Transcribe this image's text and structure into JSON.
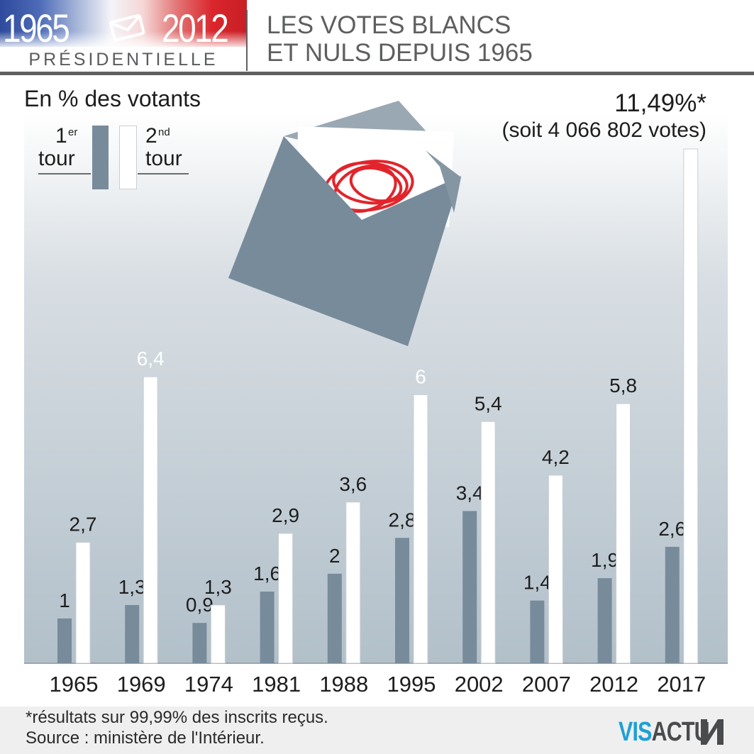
{
  "header": {
    "year_start": "1965",
    "year_end": "2012",
    "subtitle": "PRÉSIDENTIELLE",
    "title_line1": "LES VOTES BLANCS",
    "title_line2": "ET NULS DEPUIS 1965"
  },
  "legend": {
    "first_num": "1",
    "first_sup": "er",
    "first_word": "tour",
    "second_num": "2",
    "second_sup": "nd",
    "second_word": "tour"
  },
  "annotation": {
    "pct": "11,49%*",
    "votes": "(soit 4 066 802 votes)"
  },
  "footer": {
    "footnote": "*résultats sur 99,99% des inscrits reçus.",
    "source": "Source : ministère de l'Intérieur.",
    "brand_part1": "VIS",
    "brand_part2": "ACTU"
  },
  "colors": {
    "first_round": "#778b9b",
    "second_round": "#ffffff",
    "envelope": "#778b9b",
    "red_scribble": "#e2242b",
    "brand_blue": "#1ea0d6"
  },
  "icons": {
    "header_icon": "envelope-icon",
    "illustration": "ballot-envelope-icon",
    "brand": "visactu-logo"
  },
  "chart_data": {
    "type": "bar",
    "unit_label": "En % des votants",
    "categories": [
      "1965",
      "1969",
      "1974",
      "1981",
      "1988",
      "1995",
      "2002",
      "2007",
      "2012",
      "2017"
    ],
    "series": [
      {
        "name": "1er tour",
        "values": [
          1,
          1.3,
          0.9,
          1.6,
          2,
          2.8,
          3.4,
          1.4,
          1.9,
          2.6
        ],
        "labels": [
          "1",
          "1,3",
          "0,9",
          "1,6",
          "2",
          "2,8",
          "3,4",
          "1,4",
          "1,9",
          "2,6"
        ]
      },
      {
        "name": "2nd tour",
        "values": [
          2.7,
          6.4,
          1.3,
          2.9,
          3.6,
          6,
          5.4,
          4.2,
          5.8,
          11.49
        ],
        "labels": [
          "2,7",
          "6,4",
          "1,3",
          "2,9",
          "3,6",
          "6",
          "5,4",
          "4,2",
          "5,8",
          null
        ]
      }
    ],
    "ylim": [
      0,
      11.49
    ],
    "grid": false,
    "legend_position": "top-left"
  }
}
